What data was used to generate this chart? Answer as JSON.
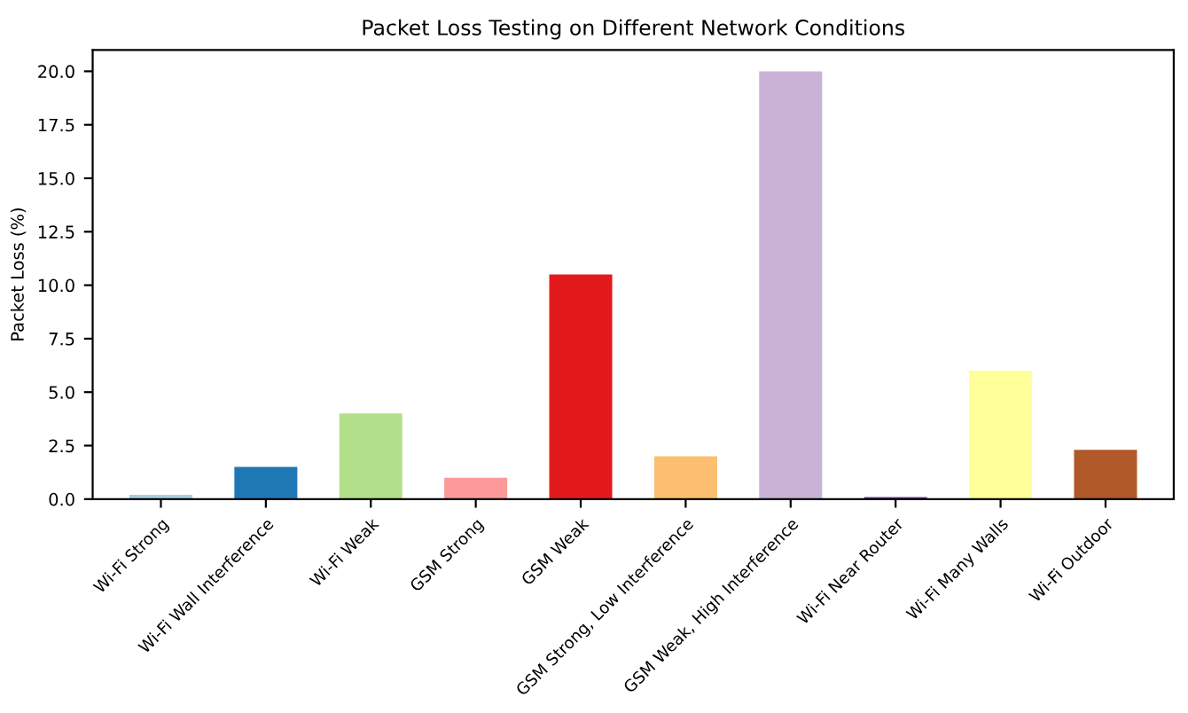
{
  "chart_data": {
    "type": "bar",
    "title": "Packet Loss Testing on Different Network Conditions",
    "ylabel": "Packet Loss (%)",
    "categories": [
      "Wi-Fi Strong",
      "Wi-Fi Wall Interference",
      "Wi-Fi Weak",
      "GSM Strong",
      "GSM Weak",
      "GSM Strong, Low Interference",
      "GSM Weak, High Interference",
      "Wi-Fi Near Router",
      "Wi-Fi Many Walls",
      "Wi-Fi Outdoor"
    ],
    "values": [
      0.2,
      1.5,
      4.0,
      1.0,
      10.5,
      2.0,
      20.0,
      0.1,
      6.0,
      2.3
    ],
    "colors": [
      "#a6cee3",
      "#1f78b4",
      "#b2df8a",
      "#fb9a99",
      "#e31a1c",
      "#fdbf6f",
      "#cab2d6",
      "#6a3d9a",
      "#ffff99",
      "#b15928"
    ],
    "ylim": [
      0,
      21
    ],
    "yticks": [
      {
        "value": 0,
        "label": "0.0"
      },
      {
        "value": 2.5,
        "label": "2.5"
      },
      {
        "value": 5,
        "label": "5.0"
      },
      {
        "value": 7.5,
        "label": "7.5"
      },
      {
        "value": 10,
        "label": "10.0"
      },
      {
        "value": 12.5,
        "label": "12.5"
      },
      {
        "value": 15,
        "label": "15.0"
      },
      {
        "value": 17.5,
        "label": "17.5"
      },
      {
        "value": 20,
        "label": "20.0"
      }
    ],
    "grid": false,
    "legend": false
  }
}
